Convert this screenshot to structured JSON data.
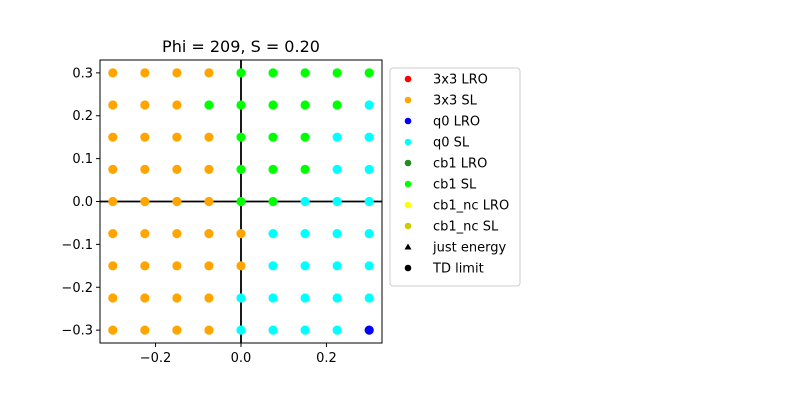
{
  "chart_data": {
    "type": "scatter",
    "title": "Phi = 209, S = 0.20",
    "xlabel": "",
    "ylabel": "",
    "xlim": [
      -0.33,
      0.33
    ],
    "ylim": [
      -0.33,
      0.33
    ],
    "xticks": [
      -0.2,
      0.0,
      0.2
    ],
    "xtick_labels": [
      "−0.2",
      "0.0",
      "0.2"
    ],
    "yticks": [
      -0.3,
      -0.2,
      -0.1,
      0.0,
      0.1,
      0.2,
      0.3
    ],
    "ytick_labels": [
      "−0.3",
      "−0.2",
      "−0.1",
      "0.0",
      "0.1",
      "0.2",
      "0.3"
    ],
    "zero_lines": true,
    "grid": false,
    "legend_placement": "outside-right",
    "grid_values": [
      -0.3,
      -0.225,
      -0.15,
      -0.075,
      0.0,
      0.075,
      0.15,
      0.225,
      0.3
    ],
    "series": [
      {
        "name": "3x3 LRO",
        "color": "#ff0000",
        "marker": "circle",
        "points": []
      },
      {
        "name": "3x3 SL",
        "color": "#ffa500",
        "marker": "circle",
        "points": [
          [
            -0.3,
            0.3
          ],
          [
            -0.225,
            0.3
          ],
          [
            -0.15,
            0.3
          ],
          [
            -0.075,
            0.3
          ],
          [
            -0.3,
            0.225
          ],
          [
            -0.225,
            0.225
          ],
          [
            -0.15,
            0.225
          ],
          [
            -0.3,
            0.15
          ],
          [
            -0.225,
            0.15
          ],
          [
            -0.15,
            0.15
          ],
          [
            -0.075,
            0.15
          ],
          [
            -0.3,
            0.075
          ],
          [
            -0.225,
            0.075
          ],
          [
            -0.15,
            0.075
          ],
          [
            -0.075,
            0.075
          ],
          [
            -0.3,
            0.0
          ],
          [
            -0.225,
            0.0
          ],
          [
            -0.15,
            0.0
          ],
          [
            -0.075,
            0.0
          ],
          [
            -0.3,
            -0.075
          ],
          [
            -0.225,
            -0.075
          ],
          [
            -0.15,
            -0.075
          ],
          [
            -0.075,
            -0.075
          ],
          [
            0.0,
            -0.075
          ],
          [
            -0.3,
            -0.15
          ],
          [
            -0.225,
            -0.15
          ],
          [
            -0.15,
            -0.15
          ],
          [
            -0.075,
            -0.15
          ],
          [
            0.0,
            -0.15
          ],
          [
            -0.3,
            -0.225
          ],
          [
            -0.225,
            -0.225
          ],
          [
            -0.15,
            -0.225
          ],
          [
            -0.075,
            -0.225
          ],
          [
            -0.3,
            -0.3
          ],
          [
            -0.225,
            -0.3
          ],
          [
            -0.15,
            -0.3
          ],
          [
            -0.075,
            -0.3
          ]
        ]
      },
      {
        "name": "q0 LRO",
        "color": "#0000ff",
        "marker": "circle",
        "points": [
          [
            0.3,
            -0.3
          ]
        ]
      },
      {
        "name": "q0 SL",
        "color": "#00ffff",
        "marker": "circle",
        "points": [
          [
            0.3,
            0.225
          ],
          [
            0.225,
            0.15
          ],
          [
            0.3,
            0.15
          ],
          [
            0.225,
            0.075
          ],
          [
            0.3,
            0.075
          ],
          [
            0.15,
            0.0
          ],
          [
            0.225,
            0.0
          ],
          [
            0.3,
            0.0
          ],
          [
            0.075,
            -0.075
          ],
          [
            0.15,
            -0.075
          ],
          [
            0.225,
            -0.075
          ],
          [
            0.3,
            -0.075
          ],
          [
            0.075,
            -0.15
          ],
          [
            0.15,
            -0.15
          ],
          [
            0.225,
            -0.15
          ],
          [
            0.3,
            -0.15
          ],
          [
            0.0,
            -0.225
          ],
          [
            0.075,
            -0.225
          ],
          [
            0.15,
            -0.225
          ],
          [
            0.225,
            -0.225
          ],
          [
            0.3,
            -0.225
          ],
          [
            0.0,
            -0.3
          ],
          [
            0.075,
            -0.3
          ],
          [
            0.15,
            -0.3
          ],
          [
            0.225,
            -0.3
          ]
        ]
      },
      {
        "name": "cb1 LRO",
        "color": "#228b22",
        "marker": "circle",
        "points": []
      },
      {
        "name": "cb1 SL",
        "color": "#00ff00",
        "marker": "circle",
        "points": [
          [
            0.0,
            0.3
          ],
          [
            0.075,
            0.3
          ],
          [
            0.15,
            0.3
          ],
          [
            0.225,
            0.3
          ],
          [
            0.3,
            0.3
          ],
          [
            -0.075,
            0.225
          ],
          [
            0.0,
            0.225
          ],
          [
            0.075,
            0.225
          ],
          [
            0.15,
            0.225
          ],
          [
            0.225,
            0.225
          ],
          [
            0.0,
            0.15
          ],
          [
            0.075,
            0.15
          ],
          [
            0.15,
            0.15
          ],
          [
            0.0,
            0.075
          ],
          [
            0.075,
            0.075
          ],
          [
            0.15,
            0.075
          ],
          [
            0.0,
            0.0
          ],
          [
            0.075,
            0.0
          ]
        ]
      },
      {
        "name": "cb1_nc LRO",
        "color": "#ffff00",
        "marker": "circle",
        "points": []
      },
      {
        "name": "cb1_nc SL",
        "color": "#cccc00",
        "marker": "circle",
        "points": []
      },
      {
        "name": "just energy",
        "color": "#000000",
        "marker": "triangle",
        "points": []
      },
      {
        "name": "TD limit",
        "color": "#000000",
        "marker": "circle",
        "points": []
      }
    ]
  }
}
